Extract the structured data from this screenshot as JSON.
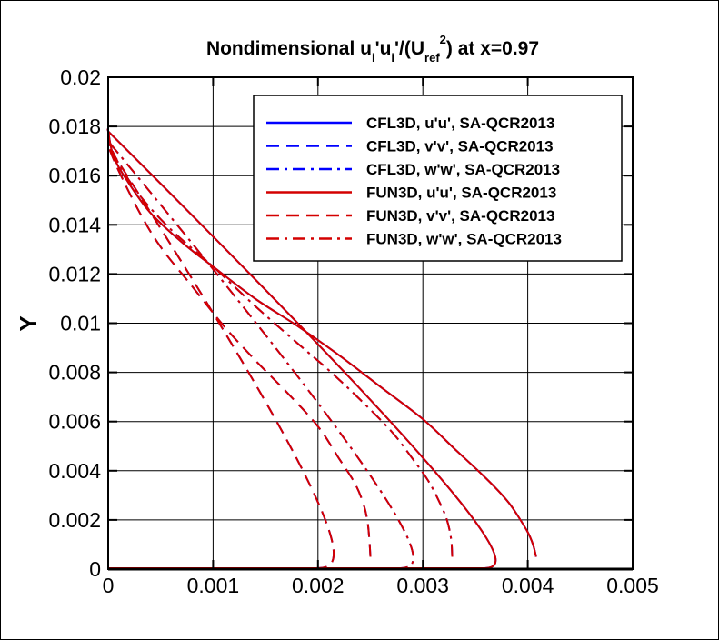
{
  "chart_data": {
    "type": "line",
    "title": {
      "prefix": "Nondimensional u",
      "sub1": "i",
      "mid1": "'u",
      "sub2": "i",
      "mid2": "'/(U",
      "sub3": "ref",
      "sup3": "2",
      "suffix": ") at x=0.97"
    },
    "xlabel": "",
    "ylabel": "Y",
    "xlim": [
      0,
      0.005
    ],
    "ylim": [
      0,
      0.02
    ],
    "xticks": [
      "0",
      "0.001",
      "0.002",
      "0.003",
      "0.004",
      "0.005"
    ],
    "yticks": [
      "0",
      "0.002",
      "0.004",
      "0.006",
      "0.008",
      "0.01",
      "0.012",
      "0.014",
      "0.016",
      "0.018",
      "0.02"
    ],
    "grid": true,
    "legend_position": "top-right",
    "series": [
      {
        "name": "CFL3D, u'u', SA-QCR2013",
        "color": "#0000ff",
        "dash": "solid",
        "x": [
          0.00408,
          0.00405,
          0.004,
          0.0039,
          0.0038,
          0.0036,
          0.0033,
          0.003,
          0.0026,
          0.0022,
          0.0018,
          0.0014,
          0.001,
          0.0007,
          0.0004,
          0.00018,
          5e-05,
          0.0
        ],
        "y": [
          0.0005,
          0.001,
          0.0015,
          0.0022,
          0.0028,
          0.0037,
          0.0049,
          0.0061,
          0.0074,
          0.0087,
          0.0099,
          0.011,
          0.0123,
          0.0133,
          0.0145,
          0.0158,
          0.0168,
          0.0178
        ]
      },
      {
        "name": "CFL3D, v'v', SA-QCR2013",
        "color": "#0000ff",
        "dash": "dashed",
        "x": [
          0.0025,
          0.00249,
          0.00247,
          0.00243,
          0.00235,
          0.0022,
          0.002,
          0.0017,
          0.0014,
          0.0011,
          0.0008,
          0.0005,
          0.0003,
          0.0001,
          0.0
        ],
        "y": [
          0.0005,
          0.0012,
          0.002,
          0.0027,
          0.0035,
          0.0045,
          0.0058,
          0.0072,
          0.0085,
          0.0099,
          0.0115,
          0.0131,
          0.0145,
          0.0162,
          0.0172
        ]
      },
      {
        "name": "CFL3D, w'w', SA-QCR2013",
        "color": "#0000ff",
        "dash": "dashdot",
        "x": [
          0.00328,
          0.00327,
          0.00323,
          0.00315,
          0.00305,
          0.0029,
          0.0027,
          0.0024,
          0.0021,
          0.0018,
          0.0014,
          0.001,
          0.0006,
          0.0003,
          0.0001,
          0.0
        ],
        "y": [
          0.0005,
          0.0012,
          0.002,
          0.0028,
          0.0036,
          0.0045,
          0.0056,
          0.0069,
          0.0081,
          0.0092,
          0.0107,
          0.0123,
          0.0138,
          0.0152,
          0.0165,
          0.0174
        ]
      },
      {
        "name": "FUN3D, u'u', SA-QCR2013",
        "color": "#d40000",
        "dash": "solid",
        "x": [
          0.00408,
          0.00405,
          0.004,
          0.0039,
          0.0038,
          0.0036,
          0.0033,
          0.003,
          0.0026,
          0.0022,
          0.0018,
          0.0014,
          0.001,
          0.0007,
          0.0004,
          0.00018,
          5e-05,
          0.0
        ],
        "y": [
          0.0005,
          0.001,
          0.0015,
          0.0022,
          0.0028,
          0.0037,
          0.0049,
          0.0061,
          0.0074,
          0.0087,
          0.0099,
          0.011,
          0.0123,
          0.0133,
          0.0145,
          0.0158,
          0.0168,
          0.0178
        ]
      },
      {
        "name": "FUN3D, v'v', SA-QCR2013",
        "color": "#d40000",
        "dash": "dashed",
        "x": [
          0.0025,
          0.00249,
          0.00247,
          0.00243,
          0.00235,
          0.0022,
          0.002,
          0.0017,
          0.0014,
          0.0011,
          0.0008,
          0.0005,
          0.0003,
          0.0001,
          0.0
        ],
        "y": [
          0.0005,
          0.0012,
          0.002,
          0.0027,
          0.0035,
          0.0045,
          0.0058,
          0.0072,
          0.0085,
          0.0099,
          0.0115,
          0.0131,
          0.0145,
          0.0162,
          0.0172
        ]
      },
      {
        "name": "FUN3D, w'w', SA-QCR2013",
        "color": "#d40000",
        "dash": "dashdot",
        "x": [
          0.00328,
          0.00327,
          0.00323,
          0.00315,
          0.00305,
          0.0029,
          0.0027,
          0.0024,
          0.0021,
          0.0018,
          0.0014,
          0.001,
          0.0006,
          0.0003,
          0.0001,
          0.0
        ],
        "y": [
          0.0005,
          0.0012,
          0.002,
          0.0028,
          0.0036,
          0.0045,
          0.0056,
          0.0069,
          0.0081,
          0.0092,
          0.0107,
          0.0123,
          0.0138,
          0.0152,
          0.0165,
          0.0174
        ]
      }
    ]
  }
}
